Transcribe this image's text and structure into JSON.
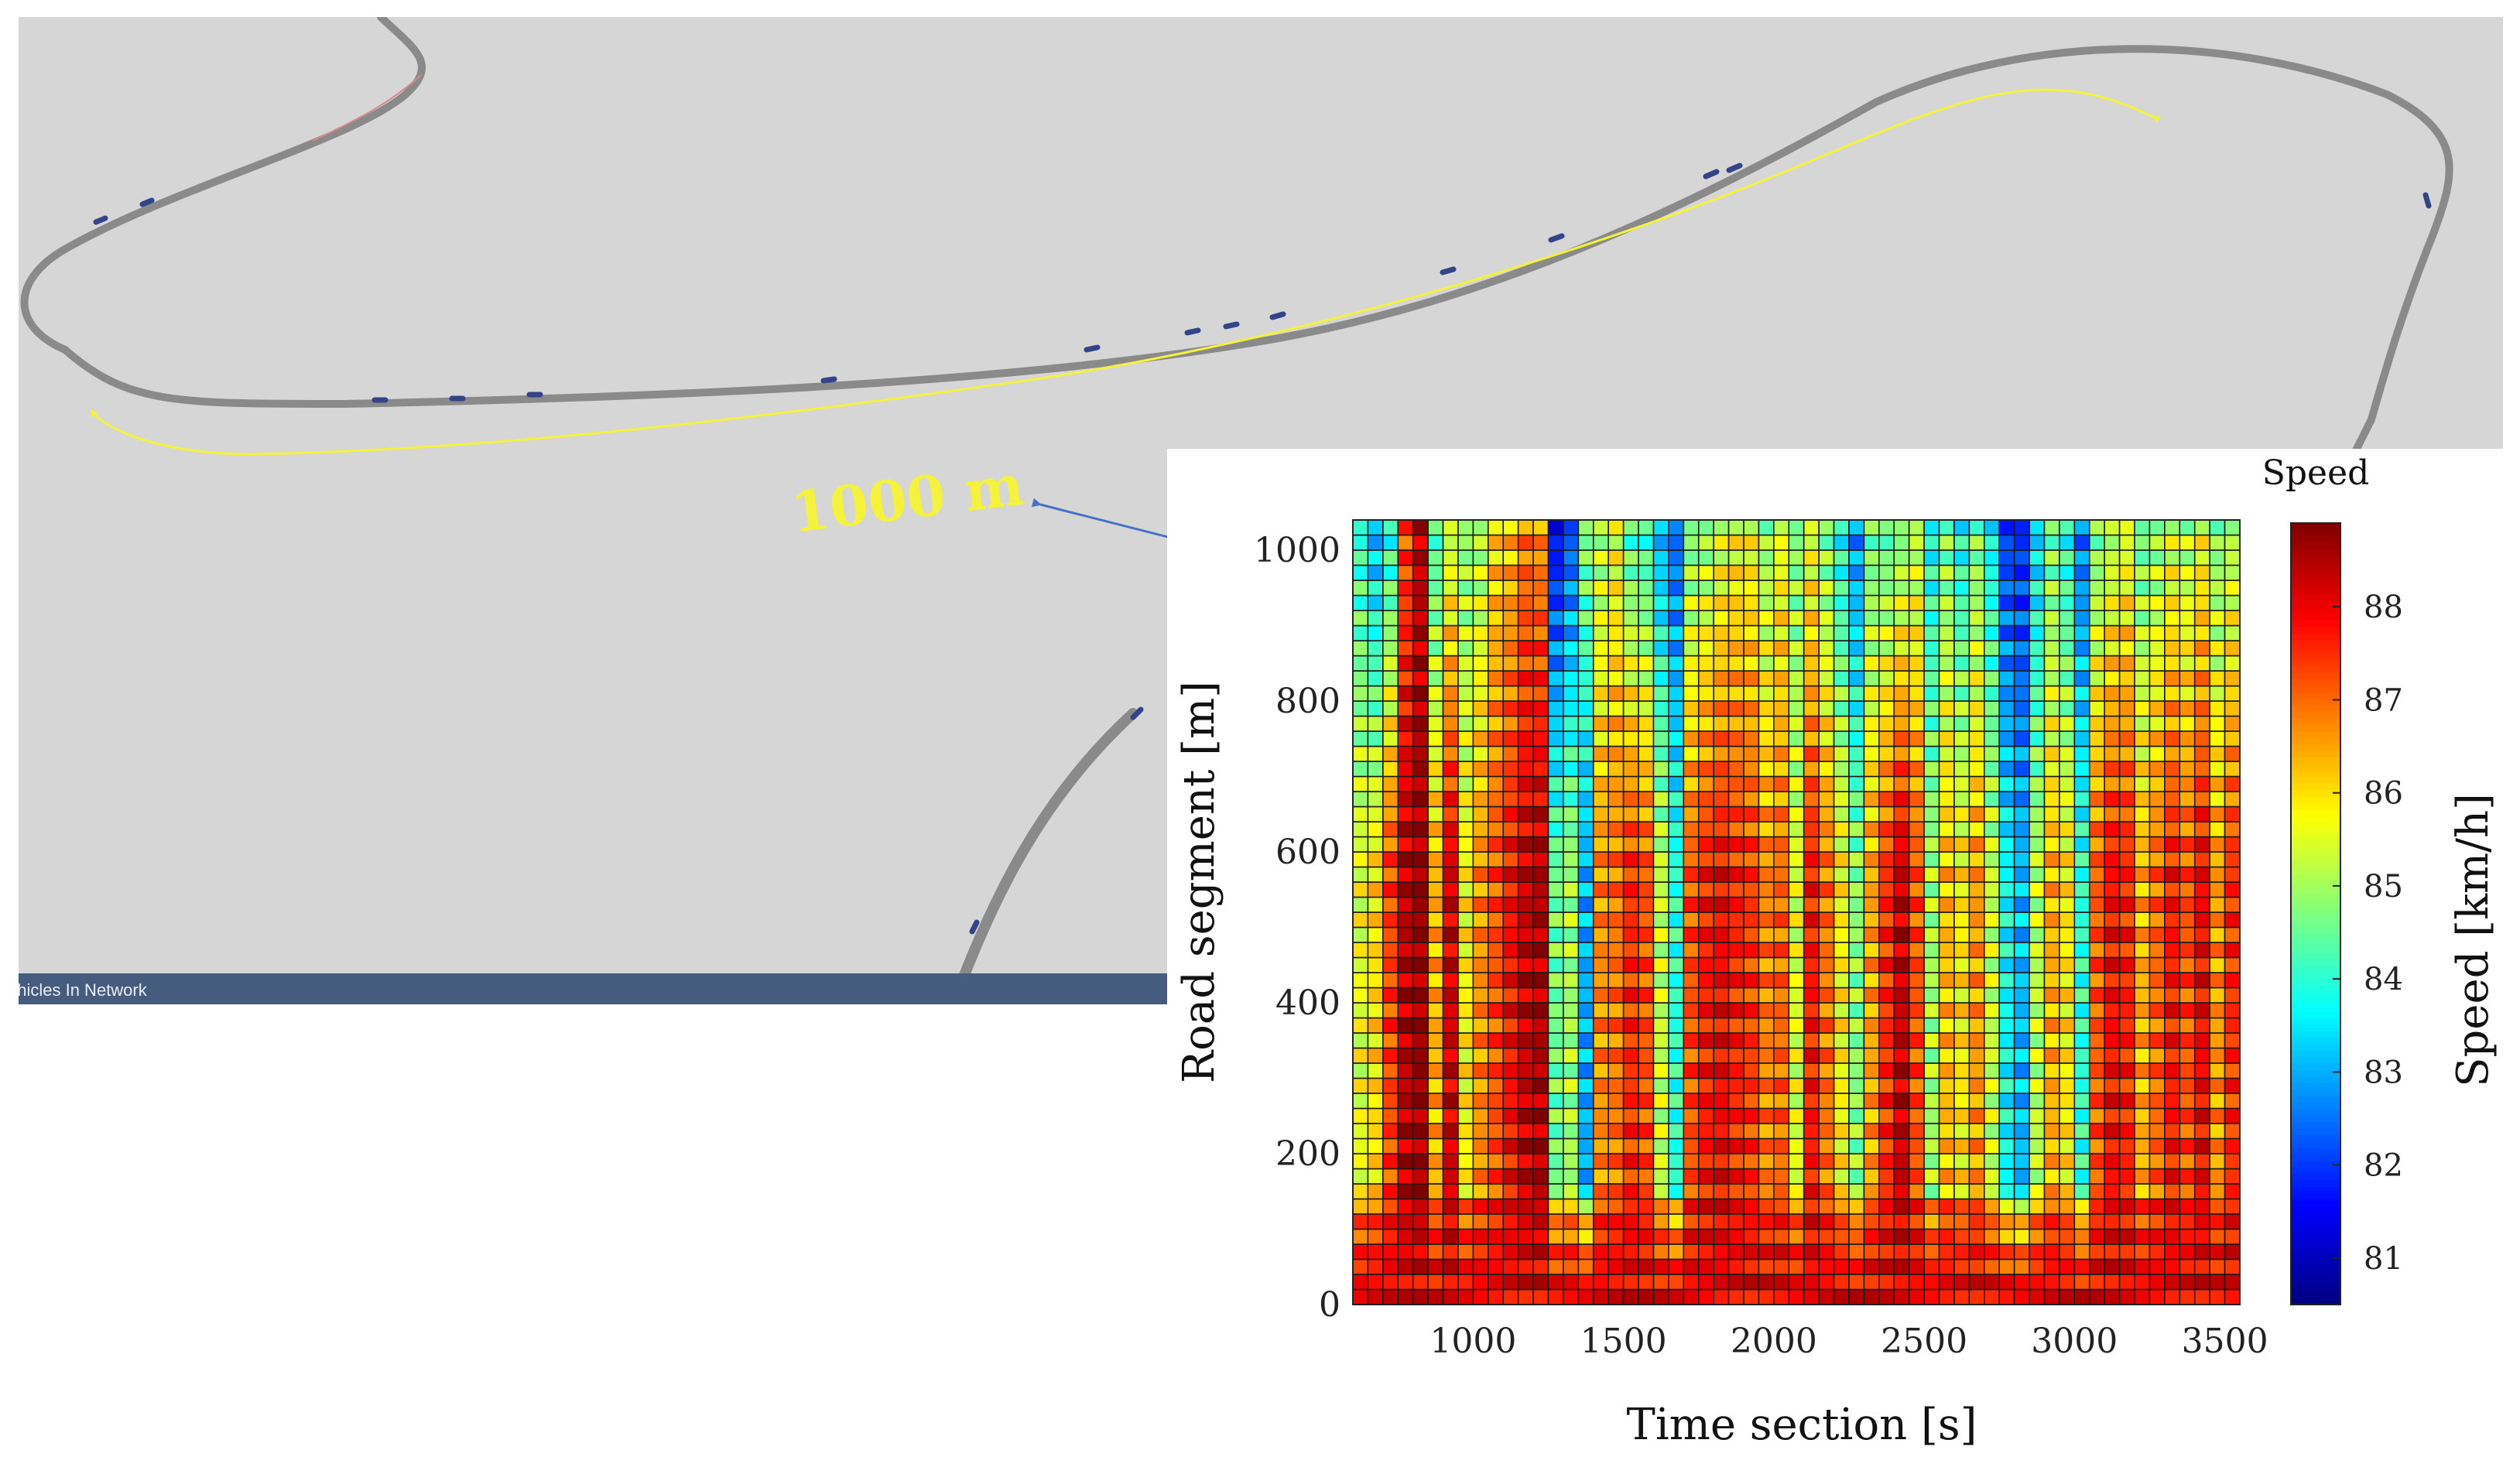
{
  "simulation": {
    "distance_label": "1000 m",
    "status_text": "ehicles In Network"
  },
  "colors": {
    "background": "#d6d6d7",
    "road": "#8a8a8a",
    "route_arrow": "#f4f23a",
    "pointer_arrow": "#4472c4",
    "status_bar": "#455c7f"
  },
  "chart_data": {
    "type": "heatmap",
    "title": "",
    "colorbar_title": "Speed",
    "xlabel": "Time section [s]",
    "ylabel": "Road segment [m]",
    "colorbar_label": "Speed [km/h]",
    "x_range": [
      600,
      3550
    ],
    "y_range": [
      0,
      1040
    ],
    "x_ticks": [
      1000,
      1500,
      2000,
      2500,
      3000,
      3500
    ],
    "y_ticks": [
      0,
      200,
      400,
      600,
      800,
      1000
    ],
    "color_range": [
      80.5,
      88.9
    ],
    "colorbar_ticks": [
      81,
      82,
      83,
      84,
      85,
      86,
      87,
      88
    ],
    "colormap": "jet",
    "grid": {
      "columns": 59,
      "rows": 52,
      "time_start": 600,
      "time_step": 50,
      "segment_start": 0,
      "segment_step": 20
    },
    "column_mean_speed": [
      85.6,
      86.0,
      87.3,
      88.4,
      88.7,
      86.4,
      88.2,
      85.8,
      86.7,
      87.2,
      87.8,
      88.3,
      88.5,
      84.6,
      85.0,
      83.0,
      86.7,
      86.9,
      87.5,
      87.2,
      85.3,
      84.0,
      87.2,
      87.7,
      87.9,
      87.6,
      87.4,
      86.8,
      87.0,
      85.5,
      87.7,
      86.9,
      85.8,
      84.8,
      86.5,
      87.5,
      88.3,
      87.2,
      85.0,
      86.3,
      85.9,
      86.6,
      85.3,
      83.7,
      83.1,
      85.2,
      86.4,
      85.9,
      84.0,
      87.1,
      87.8,
      87.6,
      86.4,
      87.0,
      87.7,
      87.2,
      87.9,
      86.6,
      87.5
    ],
    "column_top_speed": [
      84.0,
      83.0,
      83.8,
      87.2,
      88.3,
      84.2,
      85.2,
      84.8,
      85.0,
      86.0,
      86.2,
      86.8,
      86.6,
      81.5,
      82.2,
      84.8,
      85.0,
      85.5,
      84.2,
      84.0,
      83.0,
      82.4,
      84.6,
      84.8,
      85.3,
      85.6,
      85.6,
      84.8,
      85.5,
      84.7,
      85.4,
      84.6,
      83.7,
      82.7,
      84.5,
      84.3,
      84.6,
      85.1,
      83.7,
      84.6,
      83.7,
      84.6,
      83.6,
      82.0,
      81.9,
      83.3,
      84.5,
      83.8,
      82.5,
      84.6,
      85.0,
      85.4,
      84.5,
      84.8,
      85.3,
      85.0,
      85.6,
      84.7,
      85.0
    ],
    "bottom_speed": 88.0
  }
}
